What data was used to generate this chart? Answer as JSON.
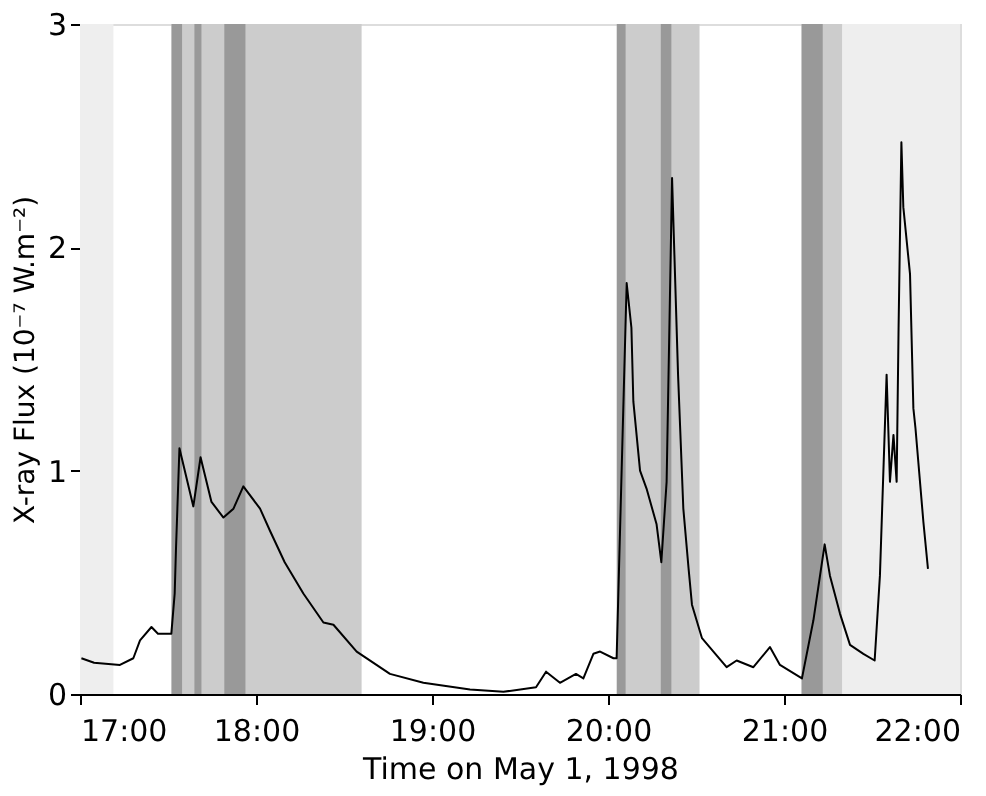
{
  "chart_data": {
    "type": "line",
    "xlabel": "Time on May 1, 1998",
    "ylabel": "X-ray Flux (10⁻⁷ W.m⁻²)",
    "xlim": [
      17,
      22
    ],
    "ylim": [
      0,
      3
    ],
    "xticks": [
      {
        "value": 17,
        "label": "17:00"
      },
      {
        "value": 18,
        "label": "18:00"
      },
      {
        "value": 19,
        "label": "19:00"
      },
      {
        "value": 20,
        "label": "20:00"
      },
      {
        "value": 21,
        "label": "21:00"
      },
      {
        "value": 22,
        "label": "22:00"
      }
    ],
    "yticks": [
      0,
      1,
      2,
      3
    ],
    "grid": false,
    "marker": "none",
    "line_style": "solid",
    "bands": [
      {
        "axis": "x",
        "from": 17.0,
        "to": 17.19,
        "color": "#eeeeee"
      },
      {
        "axis": "x",
        "from": 21.33,
        "to": 22.0,
        "color": "#eeeeee"
      },
      {
        "axis": "x",
        "from": 17.52,
        "to": 18.6,
        "color": "#cccccc"
      },
      {
        "axis": "x",
        "from": 20.05,
        "to": 20.52,
        "color": "#cccccc"
      },
      {
        "axis": "x",
        "from": 21.1,
        "to": 21.33,
        "color": "#cccccc"
      },
      {
        "axis": "x",
        "from": 17.52,
        "to": 17.58,
        "color": "#999999"
      },
      {
        "axis": "x",
        "from": 17.65,
        "to": 17.69,
        "color": "#999999"
      },
      {
        "axis": "x",
        "from": 17.82,
        "to": 17.94,
        "color": "#999999"
      },
      {
        "axis": "x",
        "from": 20.05,
        "to": 20.1,
        "color": "#999999"
      },
      {
        "axis": "x",
        "from": 20.3,
        "to": 20.36,
        "color": "#999999"
      },
      {
        "axis": "x",
        "from": 21.1,
        "to": 21.22,
        "color": "#999999"
      }
    ],
    "series": [
      {
        "color": "#000000",
        "x": [
          17.008,
          17.08,
          17.227,
          17.303,
          17.341,
          17.406,
          17.443,
          17.519,
          17.538,
          17.545,
          17.565,
          17.644,
          17.685,
          17.747,
          17.815,
          17.872,
          17.928,
          18.023,
          18.08,
          18.163,
          18.269,
          18.383,
          18.44,
          18.572,
          18.761,
          18.951,
          19.216,
          19.406,
          19.591,
          19.648,
          19.727,
          19.818,
          19.86,
          19.917,
          19.955,
          20.031,
          20.049,
          20.106,
          20.133,
          20.144,
          20.182,
          20.219,
          20.276,
          20.303,
          20.333,
          20.364,
          20.398,
          20.428,
          20.458,
          20.477,
          20.534,
          20.599,
          20.674,
          20.731,
          20.826,
          20.92,
          20.977,
          21.102,
          21.167,
          21.231,
          21.261,
          21.318,
          21.375,
          21.451,
          21.515,
          21.545,
          21.583,
          21.602,
          21.622,
          21.64,
          21.651,
          21.667,
          21.678,
          21.716,
          21.735,
          21.747,
          21.792,
          21.818
        ],
        "values": [
          0.16,
          0.14,
          0.13,
          0.16,
          0.24,
          0.3,
          0.27,
          0.27,
          0.45,
          0.64,
          1.1,
          0.84,
          1.06,
          0.86,
          0.79,
          0.83,
          0.93,
          0.83,
          0.73,
          0.59,
          0.45,
          0.32,
          0.31,
          0.19,
          0.09,
          0.05,
          0.02,
          0.01,
          0.03,
          0.1,
          0.05,
          0.09,
          0.07,
          0.18,
          0.19,
          0.16,
          0.16,
          1.84,
          1.64,
          1.31,
          1.0,
          0.92,
          0.76,
          0.59,
          0.95,
          2.31,
          1.43,
          0.83,
          0.56,
          0.4,
          0.25,
          0.19,
          0.12,
          0.15,
          0.12,
          0.21,
          0.13,
          0.07,
          0.33,
          0.67,
          0.53,
          0.36,
          0.22,
          0.18,
          0.15,
          0.53,
          1.43,
          0.95,
          1.16,
          0.95,
          1.64,
          2.47,
          2.18,
          1.88,
          1.28,
          1.19,
          0.77,
          0.56
        ]
      }
    ]
  }
}
